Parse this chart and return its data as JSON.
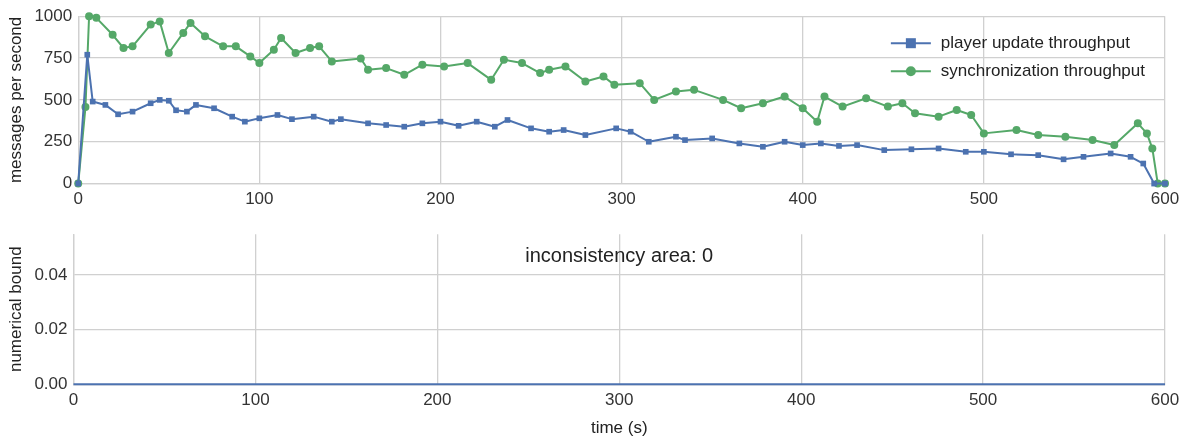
{
  "chart_data": [
    {
      "type": "line",
      "ylabel": "messages per second",
      "xlim": [
        0,
        600
      ],
      "xticks": [
        0,
        100,
        200,
        300,
        400,
        500,
        600
      ],
      "ylim": [
        0,
        1000
      ],
      "yticks": [
        0,
        250,
        500,
        750,
        1000
      ],
      "grid": true,
      "legend": "top right",
      "line_style": "solid",
      "series": [
        {
          "name": "player update throughput",
          "color": "#4c72b0",
          "marker": "square",
          "x": [
            0,
            5,
            8,
            15,
            22,
            30,
            40,
            45,
            50,
            54,
            60,
            65,
            75,
            85,
            92,
            100,
            110,
            118,
            130,
            140,
            145,
            160,
            170,
            180,
            190,
            200,
            210,
            220,
            230,
            237,
            250,
            260,
            268,
            280,
            297,
            305,
            315,
            330,
            335,
            350,
            365,
            378,
            390,
            400,
            410,
            420,
            430,
            445,
            460,
            475,
            490,
            500,
            515,
            530,
            544,
            555,
            570,
            581,
            588,
            594,
            600
          ],
          "values": [
            0,
            770,
            490,
            470,
            414,
            430,
            480,
            500,
            495,
            438,
            430,
            470,
            450,
            400,
            370,
            390,
            410,
            385,
            400,
            370,
            385,
            360,
            350,
            340,
            360,
            370,
            345,
            370,
            340,
            380,
            330,
            310,
            320,
            290,
            330,
            310,
            250,
            280,
            260,
            270,
            240,
            220,
            250,
            230,
            240,
            225,
            230,
            200,
            205,
            210,
            190,
            190,
            175,
            170,
            145,
            160,
            180,
            160,
            120,
            0,
            0
          ]
        },
        {
          "name": "synchronization throughput",
          "color": "#55a868",
          "marker": "circle",
          "x": [
            0,
            4,
            6,
            10,
            19,
            25,
            30,
            40,
            45,
            50,
            58,
            62,
            70,
            80,
            87,
            95,
            100,
            108,
            112,
            120,
            128,
            133,
            140,
            156,
            160,
            170,
            180,
            190,
            202,
            215,
            228,
            235,
            245,
            255,
            260,
            269,
            280,
            290,
            296,
            310,
            318,
            330,
            340,
            356,
            366,
            378,
            390,
            400,
            408,
            412,
            422,
            435,
            447,
            455,
            462,
            475,
            485,
            493,
            500,
            518,
            530,
            545,
            560,
            572,
            585,
            590,
            593,
            596,
            600
          ],
          "values": [
            0,
            457,
            1000,
            990,
            889,
            810,
            820,
            950,
            969,
            780,
            900,
            960,
            880,
            820,
            820,
            760,
            720,
            800,
            870,
            780,
            810,
            820,
            730,
            747,
            680,
            690,
            650,
            710,
            700,
            720,
            620,
            740,
            720,
            660,
            680,
            700,
            610,
            640,
            590,
            600,
            500,
            550,
            560,
            500,
            450,
            480,
            520,
            450,
            370,
            520,
            460,
            510,
            460,
            480,
            420,
            400,
            440,
            410,
            300,
            320,
            290,
            280,
            260,
            230,
            360,
            300,
            210,
            0,
            0
          ]
        }
      ]
    },
    {
      "type": "line",
      "xlabel": "time (s)",
      "ylabel": "numerical bound",
      "xlim": [
        0,
        600
      ],
      "xticks": [
        0,
        100,
        200,
        300,
        400,
        500,
        600
      ],
      "ylim": [
        0,
        0.055
      ],
      "yticks": [
        {
          "value": 0,
          "label": "0.00"
        },
        {
          "value": 0.02,
          "label": "0.02"
        },
        {
          "value": 0.04,
          "label": "0.04"
        }
      ],
      "grid": true,
      "marker": "none",
      "line_style": "solid",
      "annotations": [
        "inconsistency area: 0"
      ],
      "series": [
        {
          "color": "#4c72b0",
          "x": [
            0,
            600
          ],
          "values": [
            0,
            0
          ]
        }
      ]
    }
  ]
}
